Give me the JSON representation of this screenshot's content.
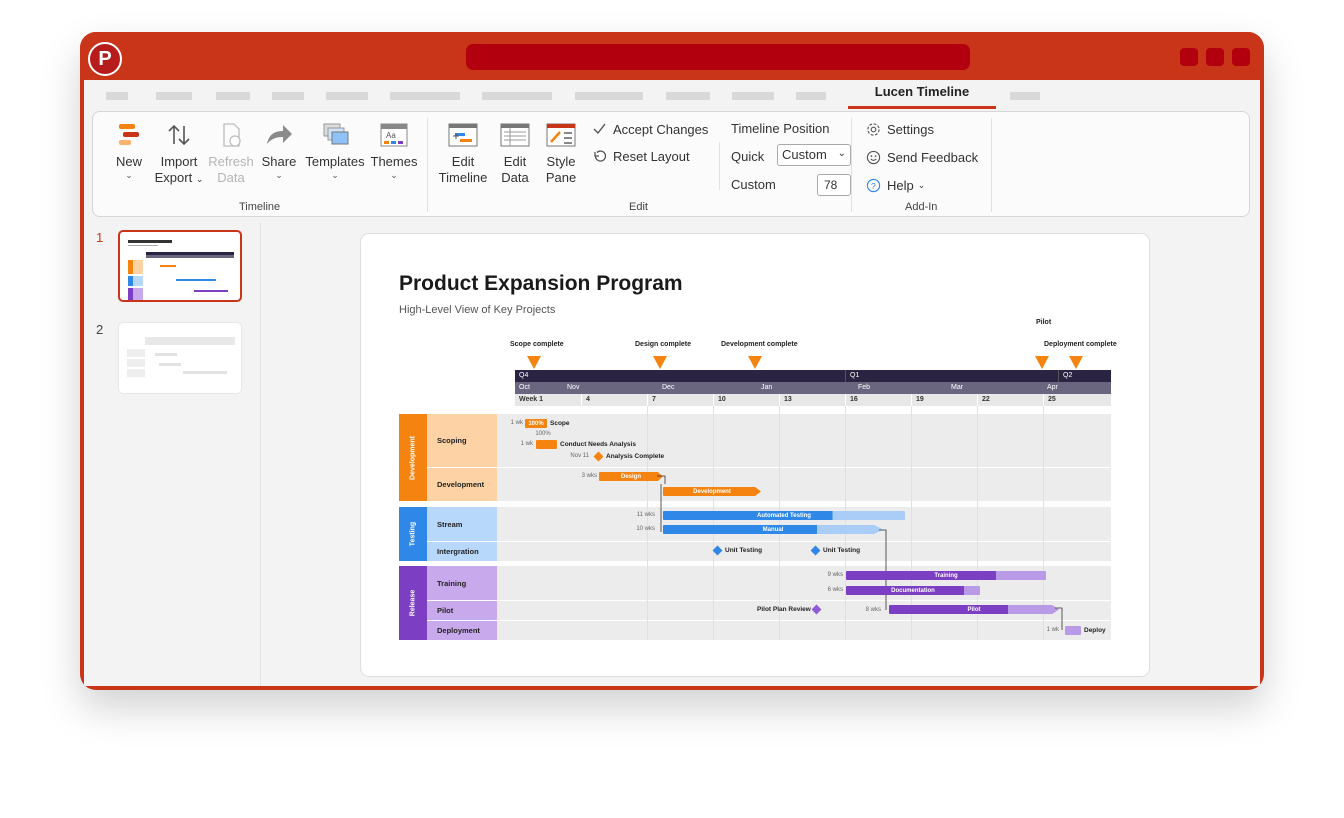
{
  "app": {
    "logo_letter": "P"
  },
  "tabs": {
    "active": "Lucen Timeline"
  },
  "ribbon": {
    "timeline_group": {
      "label": "Timeline",
      "new": "New",
      "import": "Import",
      "export": "Export",
      "refresh": "Refresh",
      "refresh_data": "Data",
      "share": "Share",
      "templates": "Templates",
      "themes": "Themes"
    },
    "edit_group": {
      "label": "Edit",
      "edit_timeline_1": "Edit",
      "edit_timeline_2": "Timeline",
      "edit_data_1": "Edit",
      "edit_data_2": "Data",
      "style_pane_1": "Style",
      "style_pane_2": "Pane",
      "accept_changes": "Accept Changes",
      "reset_layout": "Reset Layout",
      "timeline_position": "Timeline Position",
      "quick_label": "Quick",
      "quick_value": "Custom",
      "custom_label": "Custom",
      "custom_value": "78"
    },
    "addin_group": {
      "label": "Add-In",
      "settings": "Settings",
      "send_feedback": "Send Feedback",
      "help": "Help"
    }
  },
  "slides_panel": {
    "slide_1": "1",
    "slide_2": "2"
  },
  "slide": {
    "title": "Product Expansion Program",
    "subtitle": "High-Level View of Key Projects"
  },
  "timeline": {
    "milestones": [
      {
        "label": "Scope complete"
      },
      {
        "label": "Design complete"
      },
      {
        "label": "Development complete"
      },
      {
        "label": "Pilot"
      },
      {
        "label": "Deployment complete"
      }
    ],
    "quarters": [
      "Q4",
      "Q1",
      "Q2"
    ],
    "months": [
      "Oct",
      "Nov",
      "Dec",
      "Jan",
      "Feb",
      "Mar",
      "Apr"
    ],
    "weeks": [
      "Week 1",
      "4",
      "7",
      "10",
      "13",
      "16",
      "19",
      "22",
      "25"
    ],
    "groups": [
      {
        "name": "Development",
        "color": "#f4830f",
        "light": "#fdd3a6"
      },
      {
        "name": "Testing",
        "color": "#2f87e8",
        "light": "#b7d8fb"
      },
      {
        "name": "Release",
        "color": "#7c3fc4",
        "light": "#c8a9ec"
      }
    ],
    "rows": {
      "scoping": "Scoping",
      "development": "Development",
      "stream": "Stream",
      "integration": "Intergration",
      "training": "Training",
      "pilot": "Pilot",
      "deployment": "Deployment"
    },
    "tasks": {
      "scope": {
        "label": "Scope",
        "duration": "1 wk",
        "progress": "100%"
      },
      "needs": {
        "label": "Conduct Needs Analysis",
        "duration": "1 wk",
        "progress": "100%"
      },
      "analysis": {
        "label": "Analysis Complete",
        "date": "Nov 11"
      },
      "design": {
        "label": "Design",
        "duration": "3 wks"
      },
      "development": {
        "label": "Development"
      },
      "automated": {
        "label": "Automated Testing",
        "duration": "11 wks"
      },
      "manual": {
        "label": "Manual",
        "duration": "10 wks"
      },
      "unit1": {
        "label": "Unit Testing"
      },
      "unit2": {
        "label": "Unit Testing"
      },
      "training": {
        "label": "Training",
        "duration": "9 wks"
      },
      "documentation": {
        "label": "Documentation",
        "duration": "6 wks"
      },
      "pilot_review": {
        "label": "Pilot Plan Review"
      },
      "pilot": {
        "label": "Pilot",
        "duration": "8 wks"
      },
      "deploy": {
        "label": "Deploy",
        "duration": "1 wk"
      }
    }
  }
}
